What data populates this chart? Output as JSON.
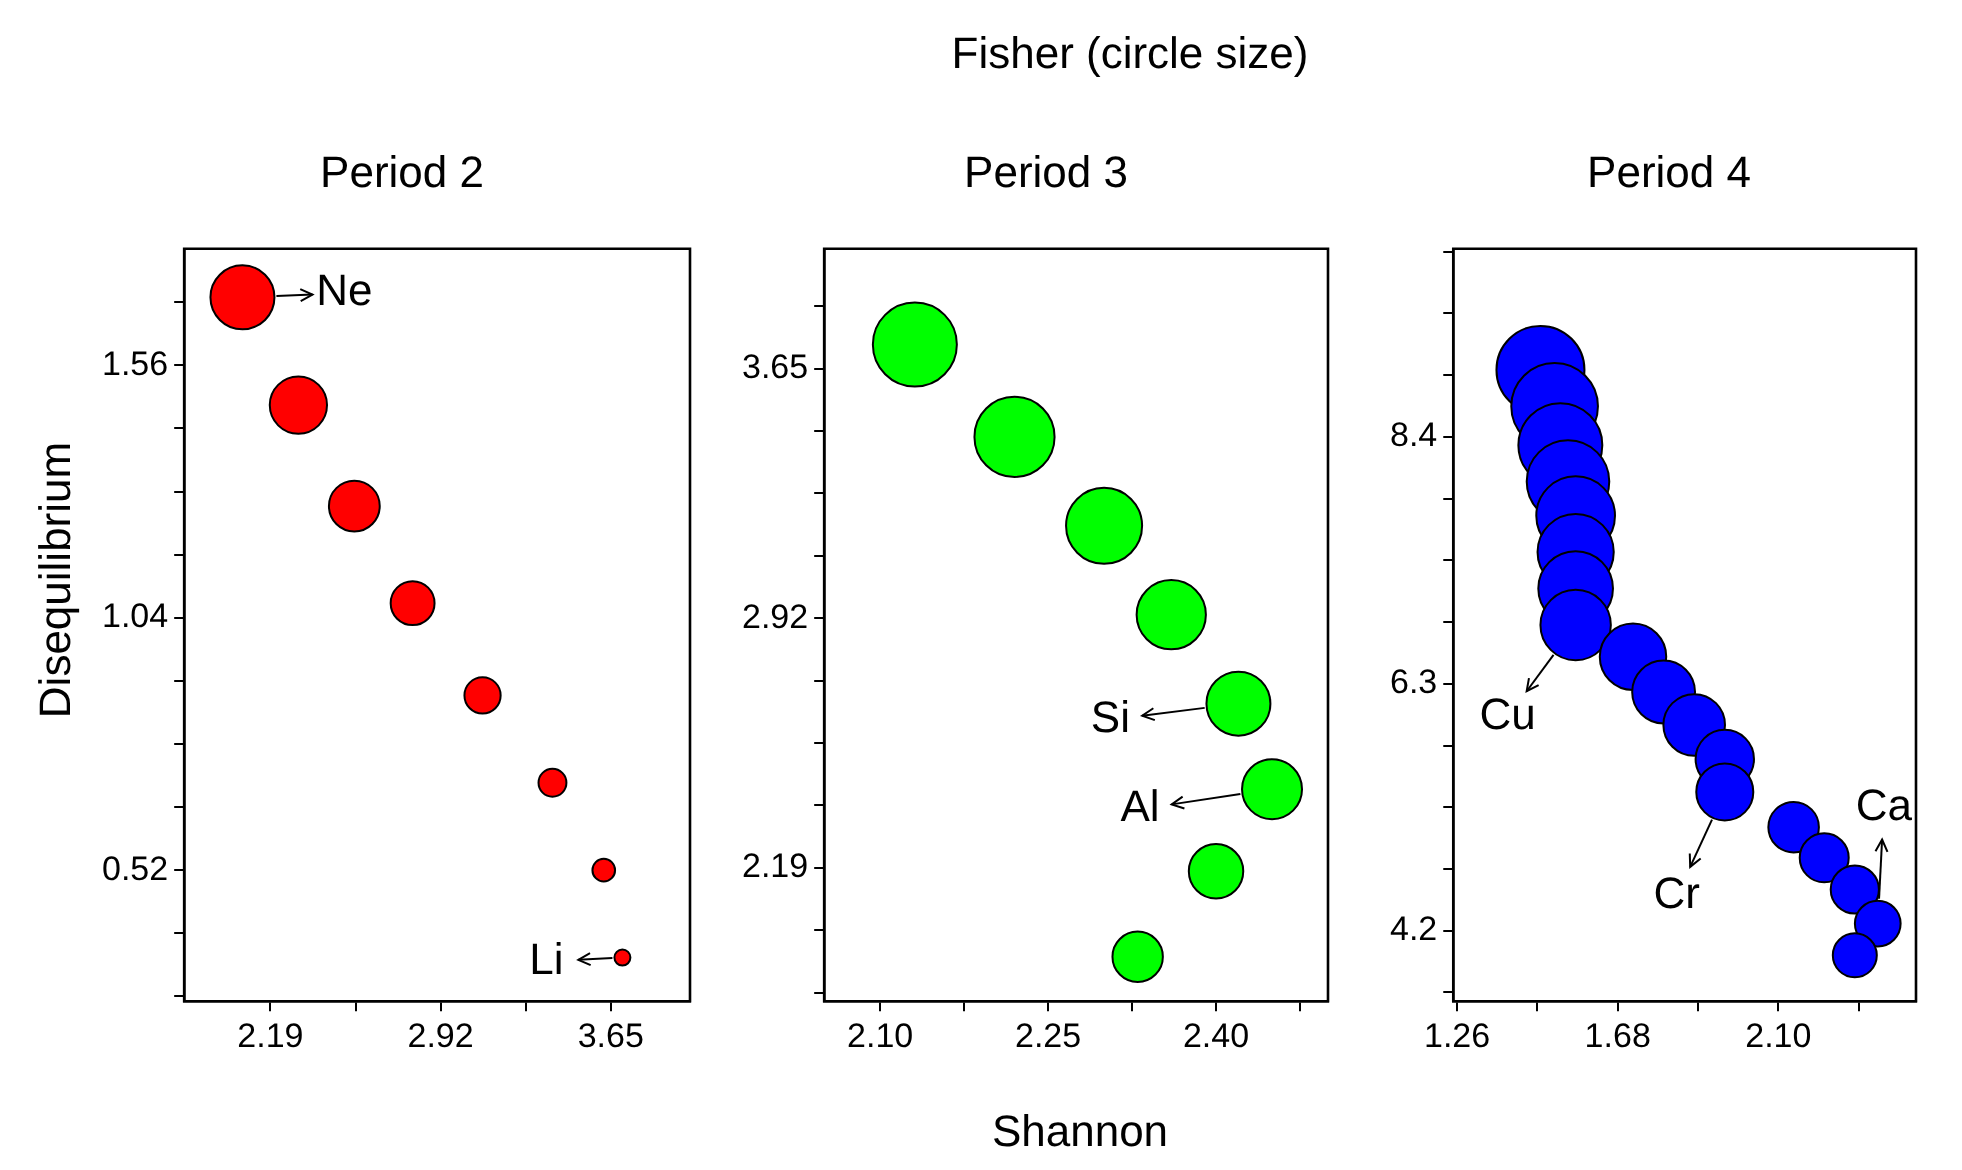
{
  "chart_data": [
    {
      "type": "bubble",
      "title": "Period 2",
      "ylabel": "Disequilibrium",
      "legend": false,
      "grid": false,
      "series": [
        {
          "color": "#ff0000",
          "x": [
            2.07,
            2.31,
            2.55,
            2.8,
            3.1,
            3.4,
            3.62,
            3.7
          ],
          "values": [
            1.7,
            1.478,
            1.27,
            1.07,
            0.88,
            0.7,
            0.52,
            0.34
          ],
          "sizes": [
            1,
            0.8,
            0.63,
            0.47,
            0.32,
            0.19,
            0.125,
            0.0625
          ]
        }
      ],
      "xlim": [
        1.82,
        3.99
      ],
      "xticks": [
        2.19,
        {
          "value": 2.555,
          "label": null
        },
        2.92,
        {
          "value": 3.285,
          "label": null
        },
        3.65
      ],
      "ylim": [
        0.25,
        1.8
      ],
      "yticks": [
        {
          "value": 0.26,
          "label": null
        },
        {
          "value": 0.39,
          "label": null
        },
        0.52,
        {
          "value": 0.65,
          "label": null
        },
        {
          "value": 0.78,
          "label": null
        },
        {
          "value": 0.91,
          "label": null
        },
        1.04,
        {
          "value": 1.17,
          "label": null
        },
        {
          "value": 1.3,
          "label": null
        },
        {
          "value": 1.43,
          "label": null
        },
        1.56,
        {
          "value": 1.69,
          "label": null
        }
      ],
      "annotations": [
        {
          "text": "Ne",
          "x": 2.07,
          "y": 1.7
        },
        {
          "text": "Li",
          "x": 3.7,
          "y": 0.34
        }
      ]
    },
    {
      "type": "bubble",
      "title": "Period 3",
      "legend_title": "Fisher (circle size)",
      "xlabel": "Shannon",
      "legend": false,
      "grid": false,
      "series": [
        {
          "color": "#00ff00",
          "x": [
            2.131,
            2.22,
            2.3,
            2.36,
            2.42,
            2.45,
            2.4,
            2.33
          ],
          "values": [
            3.72,
            3.45,
            3.19,
            2.93,
            2.67,
            2.42,
            2.18,
            1.93
          ],
          "sizes": [
            1,
            0.91,
            0.82,
            0.68,
            0.58,
            0.51,
            0.42,
            0.36
          ]
        }
      ],
      "xlim": [
        2.05,
        2.5
      ],
      "xticks": [
        {
          "value": 2.1,
          "label": "2.10"
        },
        {
          "value": 2.175,
          "label": null
        },
        2.25,
        {
          "value": 2.325,
          "label": null
        },
        {
          "value": 2.4,
          "label": "2.40"
        },
        {
          "value": 2.475,
          "label": null
        }
      ],
      "ylim": [
        1.8,
        4.0
      ],
      "yticks": [
        {
          "value": 1.825,
          "label": null
        },
        {
          "value": 2.0075,
          "label": null
        },
        2.19,
        {
          "value": 2.3725,
          "label": null
        },
        {
          "value": 2.555,
          "label": null
        },
        {
          "value": 2.7375,
          "label": null
        },
        2.92,
        {
          "value": 3.1025,
          "label": null
        },
        {
          "value": 3.285,
          "label": null
        },
        {
          "value": 3.4675,
          "label": null
        },
        3.65,
        {
          "value": 3.8325,
          "label": null
        }
      ],
      "annotations": [
        {
          "text": "Si",
          "x": 2.42,
          "y": 2.67
        },
        {
          "text": "Al",
          "x": 2.45,
          "y": 2.42
        }
      ]
    },
    {
      "type": "bubble",
      "title": "Period 4",
      "legend": false,
      "grid": false,
      "series": [
        {
          "color": "#0000ff",
          "x": [
            1.478,
            1.515,
            1.53,
            1.55,
            1.57,
            1.57,
            1.57,
            1.57,
            1.72,
            1.8,
            1.88,
            1.96,
            1.96,
            2.14,
            2.22,
            2.3,
            2.36,
            2.3
          ],
          "values": [
            8.97,
            8.66,
            8.33,
            8.02,
            7.73,
            7.42,
            7.11,
            6.8,
            6.53,
            6.23,
            5.95,
            5.66,
            5.38,
            5.08,
            4.82,
            4.55,
            4.26,
            3.99
          ],
          "sizes": [
            1,
            0.97,
            0.91,
            0.88,
            0.8,
            0.75,
            0.72,
            0.64,
            0.57,
            0.51,
            0.49,
            0.44,
            0.42,
            0.33,
            0.31,
            0.3,
            0.27,
            0.25
          ]
        }
      ],
      "xlim": [
        1.25,
        2.46
      ],
      "xticks": [
        1.26,
        {
          "value": 1.47,
          "label": null
        },
        1.68,
        {
          "value": 1.89,
          "label": null
        },
        {
          "value": 2.1,
          "label": "2.10"
        },
        {
          "value": 2.31,
          "label": null
        }
      ],
      "ylim": [
        3.6,
        10.0
      ],
      "yticks": [
        {
          "value": 3.675,
          "label": null
        },
        4.2,
        {
          "value": 4.725,
          "label": null
        },
        {
          "value": 5.25,
          "label": null
        },
        {
          "value": 5.775,
          "label": null
        },
        6.3,
        {
          "value": 6.825,
          "label": null
        },
        {
          "value": 7.35,
          "label": null
        },
        {
          "value": 7.875,
          "label": null
        },
        8.4,
        {
          "value": 8.925,
          "label": null
        },
        {
          "value": 9.45,
          "label": null
        },
        {
          "value": 9.975,
          "label": null
        }
      ],
      "annotations": [
        {
          "text": "Cu",
          "x": 1.57,
          "y": 6.8
        },
        {
          "text": "Cr",
          "x": 1.96,
          "y": 5.38
        },
        {
          "text": "Ca",
          "x": 2.36,
          "y": 4.26
        }
      ]
    }
  ]
}
